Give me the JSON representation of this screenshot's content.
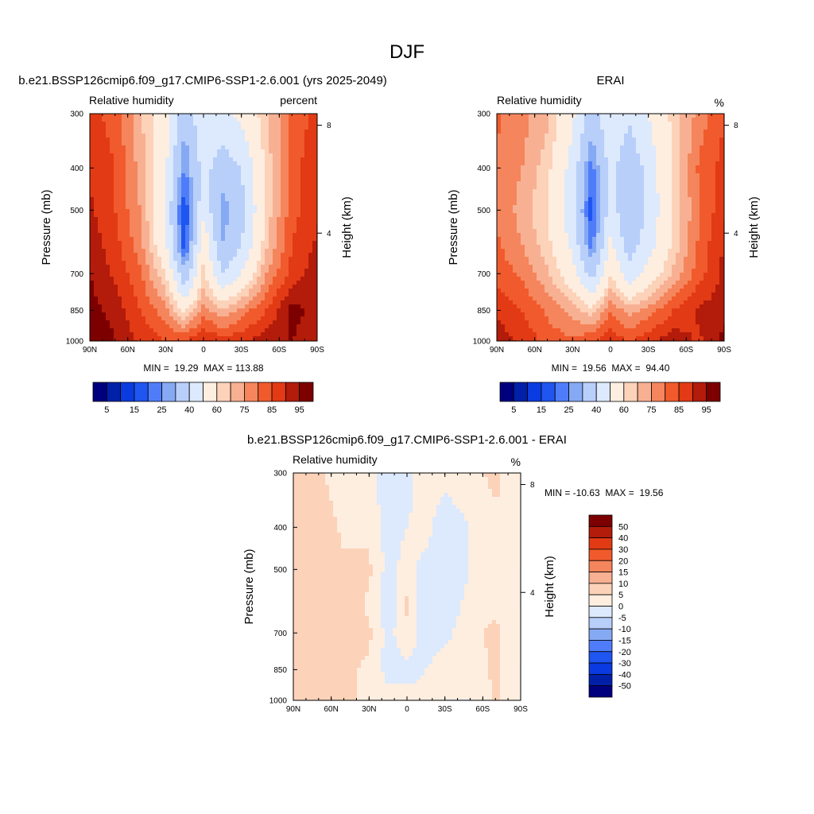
{
  "page": {
    "title": "DJF"
  },
  "panels": [
    {
      "id": "model",
      "title": "b.e21.BSSP126cmip6.f09_g17.CMIP6-SSP1-2.6.001 (yrs 2025-2049)",
      "left_label": "Relative humidity",
      "right_label": "percent",
      "ylabel": "Pressure (mb)",
      "ylabel_right": "Height (km)",
      "stats": "MIN =  19.29  MAX = 113.88"
    },
    {
      "id": "obs",
      "title": "ERAI",
      "left_label": "Relative humidity",
      "right_label": "%",
      "ylabel": "Pressure (mb)",
      "ylabel_right": "Height (km)",
      "stats": "MIN =  19.56  MAX =  94.40"
    },
    {
      "id": "diff",
      "title": "b.e21.BSSP126cmip6.f09_g17.CMIP6-SSP1-2.6.001 - ERAI",
      "left_label": "Relative humidity",
      "right_label": "%",
      "ylabel": "Pressure (mb)",
      "ylabel_right": "Height (km)",
      "stats": "MIN = -10.63  MAX =  19.56"
    }
  ],
  "axes": {
    "x_ticks": [
      "90N",
      "60N",
      "30N",
      "0",
      "30S",
      "60S",
      "90S"
    ],
    "x_values": [
      90,
      60,
      30,
      0,
      -30,
      -60,
      -90
    ],
    "y_ticks": [
      "300",
      "400",
      "500",
      "700",
      "850",
      "1000"
    ],
    "y_values": [
      300,
      400,
      500,
      700,
      850,
      1000
    ],
    "y_right_ticks": [
      "8",
      "4"
    ],
    "y_right_values": [
      8,
      4
    ]
  },
  "colorbars": {
    "main": {
      "colors": [
        "#00007f",
        "#0020a8",
        "#0a3be0",
        "#1f55f0",
        "#4f7dfa",
        "#86a9f4",
        "#b8cffa",
        "#dde9fc",
        "#fdeee0",
        "#fcd2b9",
        "#f8b092",
        "#f5855c",
        "#f15a2c",
        "#e23a14",
        "#b31b0a",
        "#7d0000"
      ],
      "labels": [
        "5",
        "15",
        "25",
        "40",
        "60",
        "75",
        "85",
        "95"
      ]
    },
    "diff": {
      "colors": [
        "#00007f",
        "#0020a8",
        "#0a3be0",
        "#1f55f0",
        "#4f7dfa",
        "#86a9f4",
        "#b8cffa",
        "#dde9fc",
        "#fdeee0",
        "#fcd2b9",
        "#f8b092",
        "#f5855c",
        "#f15a2c",
        "#e23a14",
        "#b31b0a",
        "#7d0000"
      ],
      "labels": [
        "50",
        "40",
        "30",
        "20",
        "15",
        "10",
        "5",
        "0",
        "-5",
        "-10",
        "-15",
        "-20",
        "-30",
        "-40",
        "-50"
      ]
    }
  },
  "chart_data": [
    {
      "type": "heatmap",
      "title": "b.e21.BSSP126cmip6.f09_g17.CMIP6-SSP1-2.6.001 (yrs 2025-2049)",
      "variable": "Relative humidity",
      "units": "percent",
      "xlabel": "",
      "ylabel": "Pressure (mb)",
      "y2label": "Height (km)",
      "xlim": [
        90,
        -90
      ],
      "ylim": [
        300,
        1000
      ],
      "y_scale": "log-pressure",
      "min": 19.29,
      "max": 113.88,
      "levels": [
        5,
        10,
        15,
        20,
        25,
        30,
        40,
        50,
        60,
        65,
        70,
        75,
        80,
        85,
        90,
        95
      ],
      "x": [
        90,
        70,
        50,
        30,
        15,
        0,
        -15,
        -30,
        -50,
        -70,
        -90
      ],
      "y": [
        300,
        400,
        500,
        600,
        700,
        850,
        1000
      ],
      "z": [
        [
          82,
          78,
          66,
          54,
          32,
          48,
          48,
          52,
          64,
          76,
          82
        ],
        [
          84,
          80,
          68,
          52,
          24,
          44,
          34,
          40,
          62,
          78,
          84
        ],
        [
          86,
          80,
          70,
          50,
          14,
          48,
          26,
          36,
          62,
          78,
          84
        ],
        [
          88,
          82,
          72,
          52,
          16,
          58,
          30,
          40,
          64,
          80,
          86
        ],
        [
          90,
          84,
          76,
          60,
          32,
          62,
          40,
          50,
          70,
          82,
          88
        ],
        [
          92,
          88,
          80,
          72,
          58,
          72,
          66,
          72,
          80,
          92,
          88
        ],
        [
          97,
          90,
          84,
          80,
          80,
          86,
          82,
          84,
          88,
          90,
          86
        ]
      ]
    },
    {
      "type": "heatmap",
      "title": "ERAI",
      "variable": "Relative humidity",
      "units": "%",
      "xlabel": "",
      "ylabel": "Pressure (mb)",
      "y2label": "Height (km)",
      "xlim": [
        90,
        -90
      ],
      "ylim": [
        300,
        1000
      ],
      "y_scale": "log-pressure",
      "min": 19.56,
      "max": 94.4,
      "levels": [
        5,
        10,
        15,
        20,
        25,
        30,
        40,
        50,
        60,
        65,
        70,
        75,
        80,
        85,
        90,
        95
      ],
      "x": [
        90,
        70,
        50,
        30,
        15,
        0,
        -15,
        -30,
        -50,
        -70,
        -90
      ],
      "y": [
        300,
        400,
        500,
        600,
        700,
        850,
        1000
      ],
      "z": [
        [
          76,
          72,
          66,
          52,
          34,
          48,
          42,
          50,
          62,
          72,
          80
        ],
        [
          74,
          70,
          62,
          46,
          22,
          44,
          32,
          44,
          62,
          76,
          82
        ],
        [
          74,
          68,
          60,
          44,
          16,
          46,
          30,
          42,
          62,
          74,
          84
        ],
        [
          76,
          70,
          62,
          48,
          22,
          52,
          34,
          46,
          62,
          76,
          86
        ],
        [
          78,
          74,
          66,
          54,
          36,
          60,
          44,
          54,
          66,
          78,
          86
        ],
        [
          84,
          80,
          74,
          68,
          62,
          74,
          68,
          72,
          80,
          86,
          88
        ],
        [
          88,
          84,
          78,
          76,
          80,
          84,
          80,
          84,
          88,
          84,
          92
        ]
      ]
    },
    {
      "type": "heatmap",
      "title": "b.e21.BSSP126cmip6.f09_g17.CMIP6-SSP1-2.6.001 - ERAI",
      "variable": "Relative humidity",
      "units": "%",
      "xlabel": "",
      "ylabel": "Pressure (mb)",
      "y2label": "Height (km)",
      "xlim": [
        90,
        -90
      ],
      "ylim": [
        300,
        1000
      ],
      "y_scale": "log-pressure",
      "min": -10.63,
      "max": 19.56,
      "levels": [
        -50,
        -40,
        -30,
        -20,
        -15,
        -10,
        -5,
        0,
        5,
        10,
        15,
        20,
        30,
        40,
        50
      ],
      "x": [
        90,
        70,
        50,
        30,
        15,
        0,
        -15,
        -30,
        -50,
        -70,
        -90
      ],
      "y": [
        300,
        400,
        500,
        600,
        700,
        850,
        1000
      ],
      "z": [
        [
          6,
          6,
          2,
          2,
          -4,
          -2,
          4,
          2,
          4,
          6,
          2
        ],
        [
          8,
          8,
          4,
          4,
          -2,
          0,
          2,
          -4,
          0,
          4,
          4
        ],
        [
          8,
          10,
          6,
          6,
          -2,
          2,
          -2,
          -4,
          0,
          4,
          0
        ],
        [
          8,
          8,
          8,
          4,
          -4,
          6,
          -4,
          -4,
          2,
          4,
          0
        ],
        [
          10,
          8,
          8,
          6,
          -2,
          4,
          -4,
          -2,
          4,
          6,
          2
        ],
        [
          8,
          8,
          6,
          4,
          -2,
          -2,
          0,
          4,
          2,
          6,
          0
        ],
        [
          10,
          8,
          6,
          4,
          2,
          2,
          2,
          0,
          0,
          6,
          0
        ]
      ]
    }
  ]
}
